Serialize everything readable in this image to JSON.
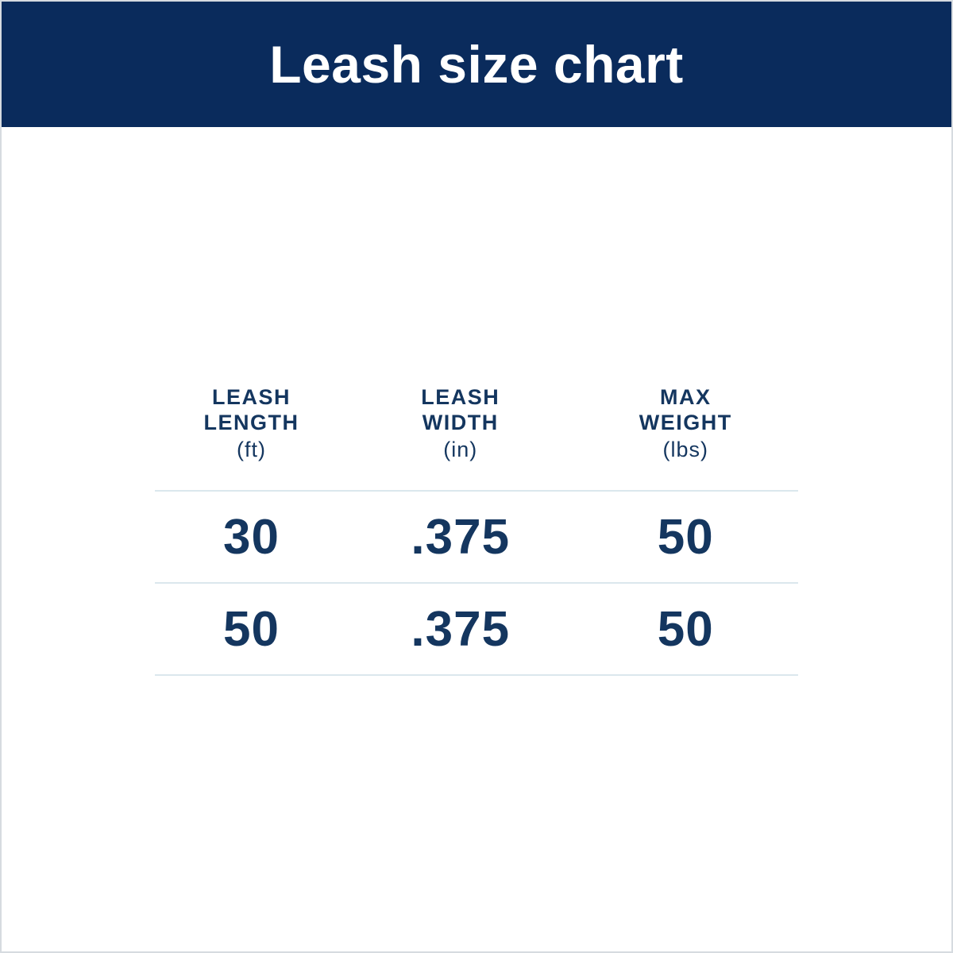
{
  "header": {
    "title": "Leash size chart"
  },
  "colors": {
    "banner_bg": "#0a2b5c",
    "text_navy": "#14365f",
    "divider": "#dbe7ed",
    "page_bg": "#ffffff",
    "page_border": "#d6dbe0",
    "title_text": "#ffffff"
  },
  "table": {
    "columns": [
      {
        "label_lines": [
          "LEASH",
          "LENGTH"
        ],
        "unit": "(ft)"
      },
      {
        "label_lines": [
          "LEASH",
          "WIDTH"
        ],
        "unit": "(in)"
      },
      {
        "label_lines": [
          "MAX",
          "WEIGHT"
        ],
        "unit": "(lbs)"
      }
    ],
    "rows": [
      [
        "30",
        ".375",
        "50"
      ],
      [
        "50",
        ".375",
        "50"
      ]
    ]
  },
  "chart_data": {
    "type": "table",
    "title": "Leash size chart",
    "columns": [
      "Leash length (ft)",
      "Leash width (in)",
      "Max weight (lbs)"
    ],
    "rows": [
      [
        30,
        0.375,
        50
      ],
      [
        50,
        0.375,
        50
      ]
    ],
    "layout_hints": {
      "header_banner": true,
      "row_dividers": true,
      "grid": "horizontal lines only"
    }
  }
}
